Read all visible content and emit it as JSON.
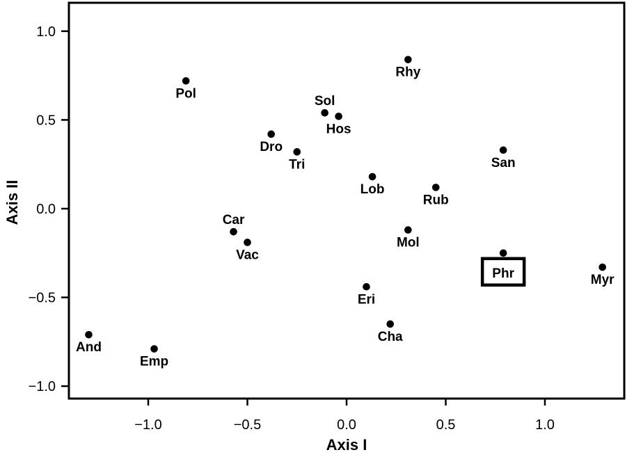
{
  "figure": {
    "background_color": "#ffffff",
    "foreground_color": "#000000"
  },
  "chart_data": {
    "type": "scatter",
    "title": "",
    "xlabel": "Axis I",
    "ylabel": "Axis II",
    "xlim": [
      -1.4,
      1.4
    ],
    "ylim": [
      -1.07,
      1.16
    ],
    "grid": false,
    "legend": false,
    "xticks": {
      "values": [
        -1.0,
        -0.5,
        0.0,
        0.5,
        1.0
      ],
      "labels": [
        "−1.0",
        "−0.5",
        "0.0",
        "0.5",
        "1.0"
      ]
    },
    "yticks": {
      "values": [
        -1.0,
        -0.5,
        0.0,
        0.5,
        1.0
      ],
      "labels": [
        "−1.0",
        "−0.5",
        "0.0",
        "0.5",
        "1.0"
      ]
    },
    "marker": {
      "shape": "circle",
      "color": "#000000",
      "radius_px": 5.3
    },
    "frame_color": "#000000",
    "points": [
      {
        "label": "Pol",
        "x": -0.81,
        "y": 0.72,
        "label_side": "below",
        "boxed": false
      },
      {
        "label": "Rhy",
        "x": 0.31,
        "y": 0.84,
        "label_side": "below",
        "boxed": false
      },
      {
        "label": "Sol",
        "x": -0.11,
        "y": 0.54,
        "label_side": "above",
        "boxed": false
      },
      {
        "label": "Hos",
        "x": -0.04,
        "y": 0.52,
        "label_side": "below",
        "boxed": false
      },
      {
        "label": "Dro",
        "x": -0.38,
        "y": 0.42,
        "label_side": "below",
        "boxed": false
      },
      {
        "label": "Tri",
        "x": -0.25,
        "y": 0.32,
        "label_side": "below",
        "boxed": false
      },
      {
        "label": "San",
        "x": 0.79,
        "y": 0.33,
        "label_side": "below",
        "boxed": false
      },
      {
        "label": "Lob",
        "x": 0.13,
        "y": 0.18,
        "label_side": "below",
        "boxed": false
      },
      {
        "label": "Rub",
        "x": 0.45,
        "y": 0.12,
        "label_side": "below",
        "boxed": false
      },
      {
        "label": "Car",
        "x": -0.57,
        "y": -0.13,
        "label_side": "above",
        "boxed": false
      },
      {
        "label": "Vac",
        "x": -0.5,
        "y": -0.19,
        "label_side": "below",
        "boxed": false
      },
      {
        "label": "Mol",
        "x": 0.31,
        "y": -0.12,
        "label_side": "below",
        "boxed": false
      },
      {
        "label": "Phr",
        "x": 0.79,
        "y": -0.25,
        "label_side": "below",
        "boxed": true
      },
      {
        "label": "Myr",
        "x": 1.29,
        "y": -0.33,
        "label_side": "below",
        "boxed": false
      },
      {
        "label": "Eri",
        "x": 0.1,
        "y": -0.44,
        "label_side": "below",
        "boxed": false
      },
      {
        "label": "Cha",
        "x": 0.22,
        "y": -0.65,
        "label_side": "below",
        "boxed": false
      },
      {
        "label": "And",
        "x": -1.3,
        "y": -0.71,
        "label_side": "below",
        "boxed": false
      },
      {
        "label": "Emp",
        "x": -0.97,
        "y": -0.79,
        "label_side": "below",
        "boxed": false
      }
    ]
  }
}
